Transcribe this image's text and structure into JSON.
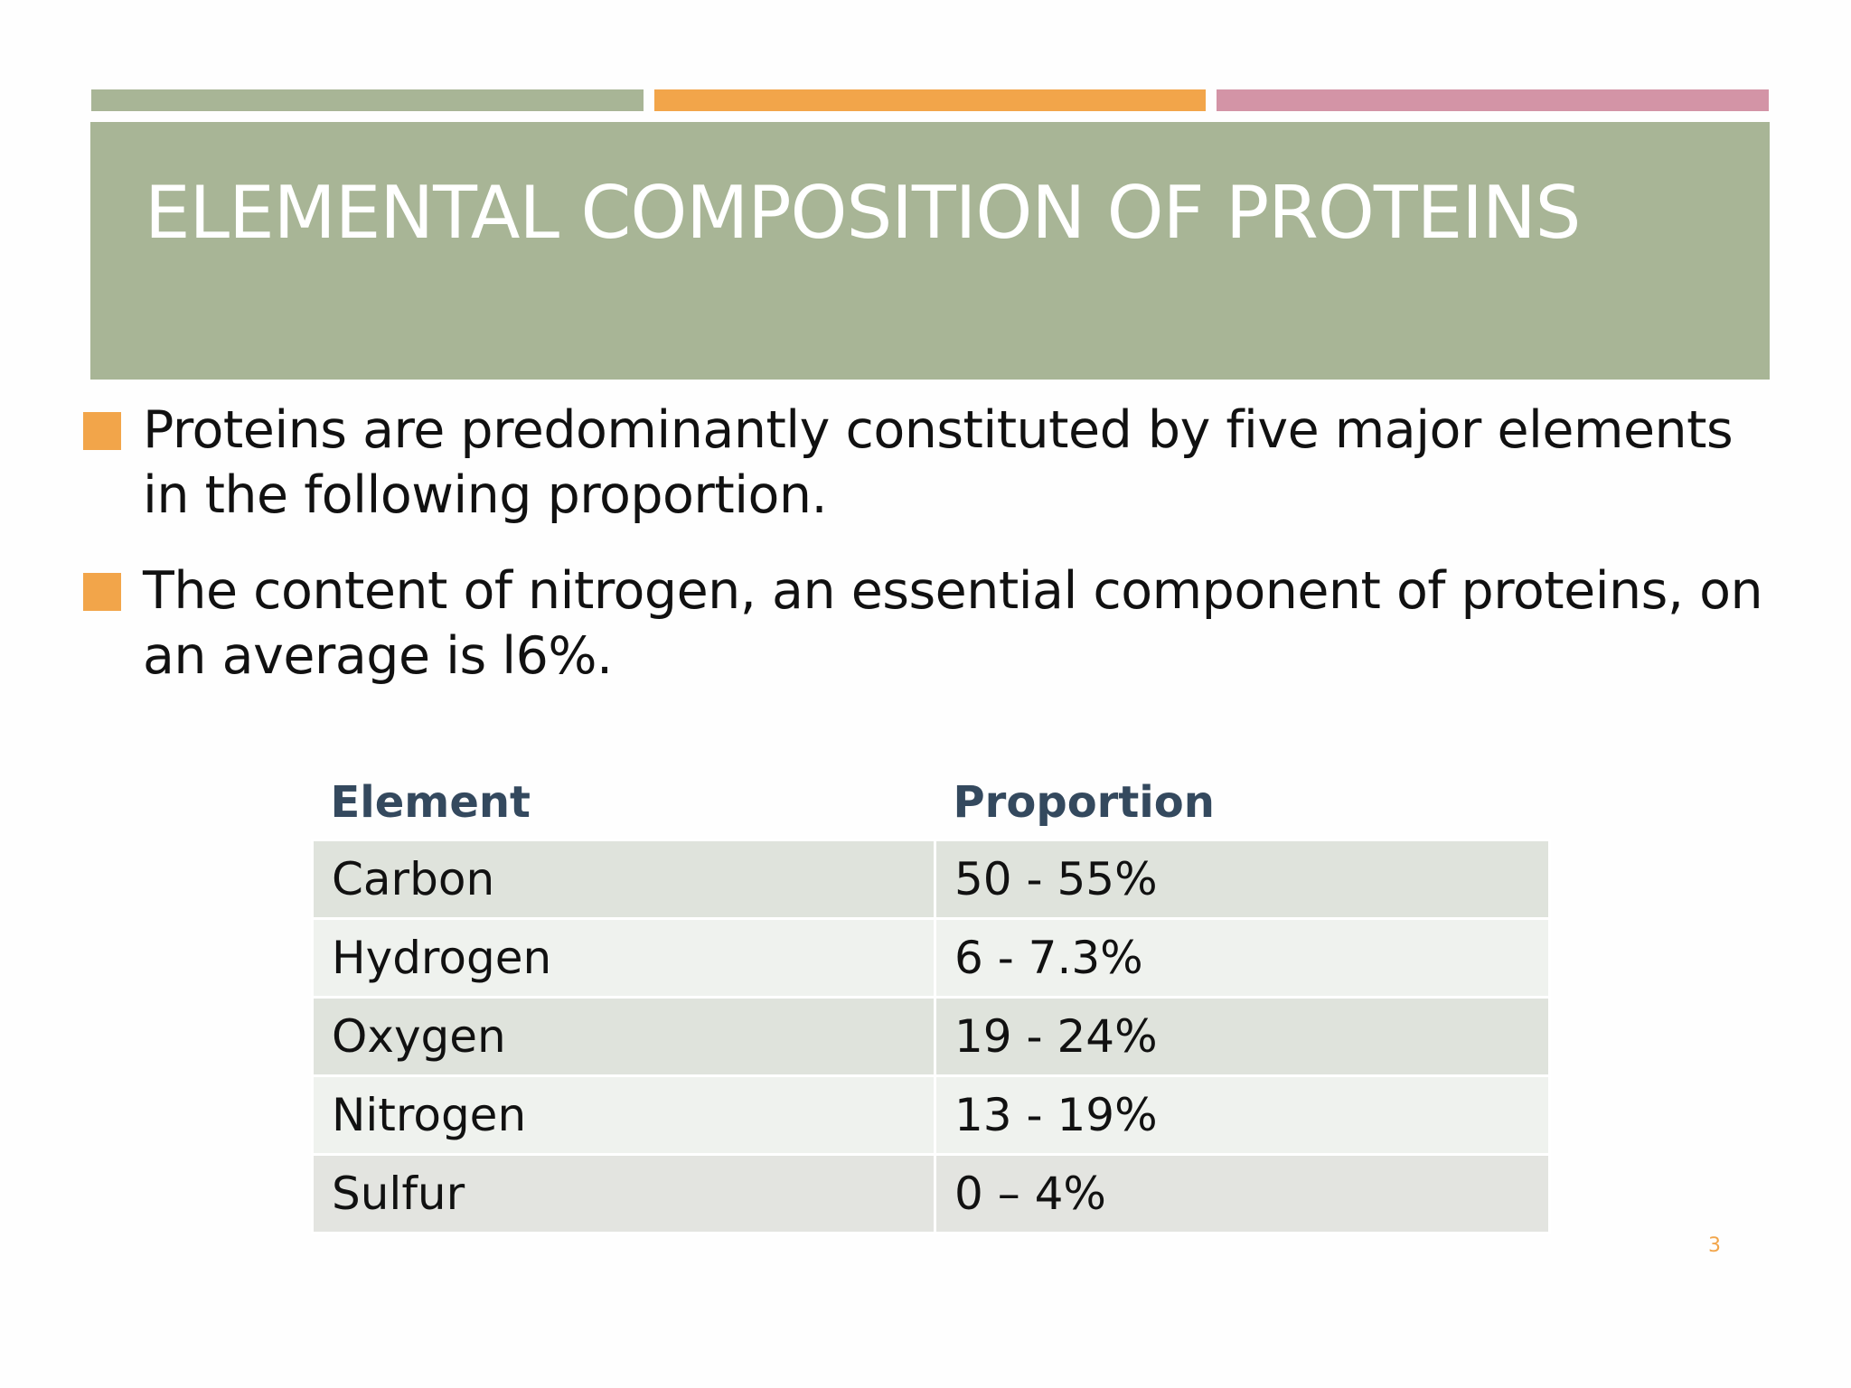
{
  "slide": {
    "title": "ELEMENTAL COMPOSITION OF PROTEINS",
    "bullets": [
      {
        "text": "Proteins are predominantly constituted by five major elements in the following proportion."
      },
      {
        "text": "The content of nitrogen, an essential component of proteins, on an average is l6%."
      }
    ],
    "table": {
      "headers": [
        "Element",
        "Proportion"
      ],
      "rows": [
        {
          "element": "Carbon",
          "proportion": "50 - 55%"
        },
        {
          "element": "Hydrogen",
          "proportion": "6 - 7.3%"
        },
        {
          "element": "Oxygen",
          "proportion": "19 - 24%"
        },
        {
          "element": "Nitrogen",
          "proportion": "13 - 19%"
        },
        {
          "element": "Sulfur",
          "proportion": "0 – 4%"
        }
      ]
    },
    "page_number": "3"
  },
  "colors": {
    "green": "#a8b596",
    "orange": "#f2a54a",
    "pink": "#d394a6",
    "header_text": "#34495e"
  }
}
